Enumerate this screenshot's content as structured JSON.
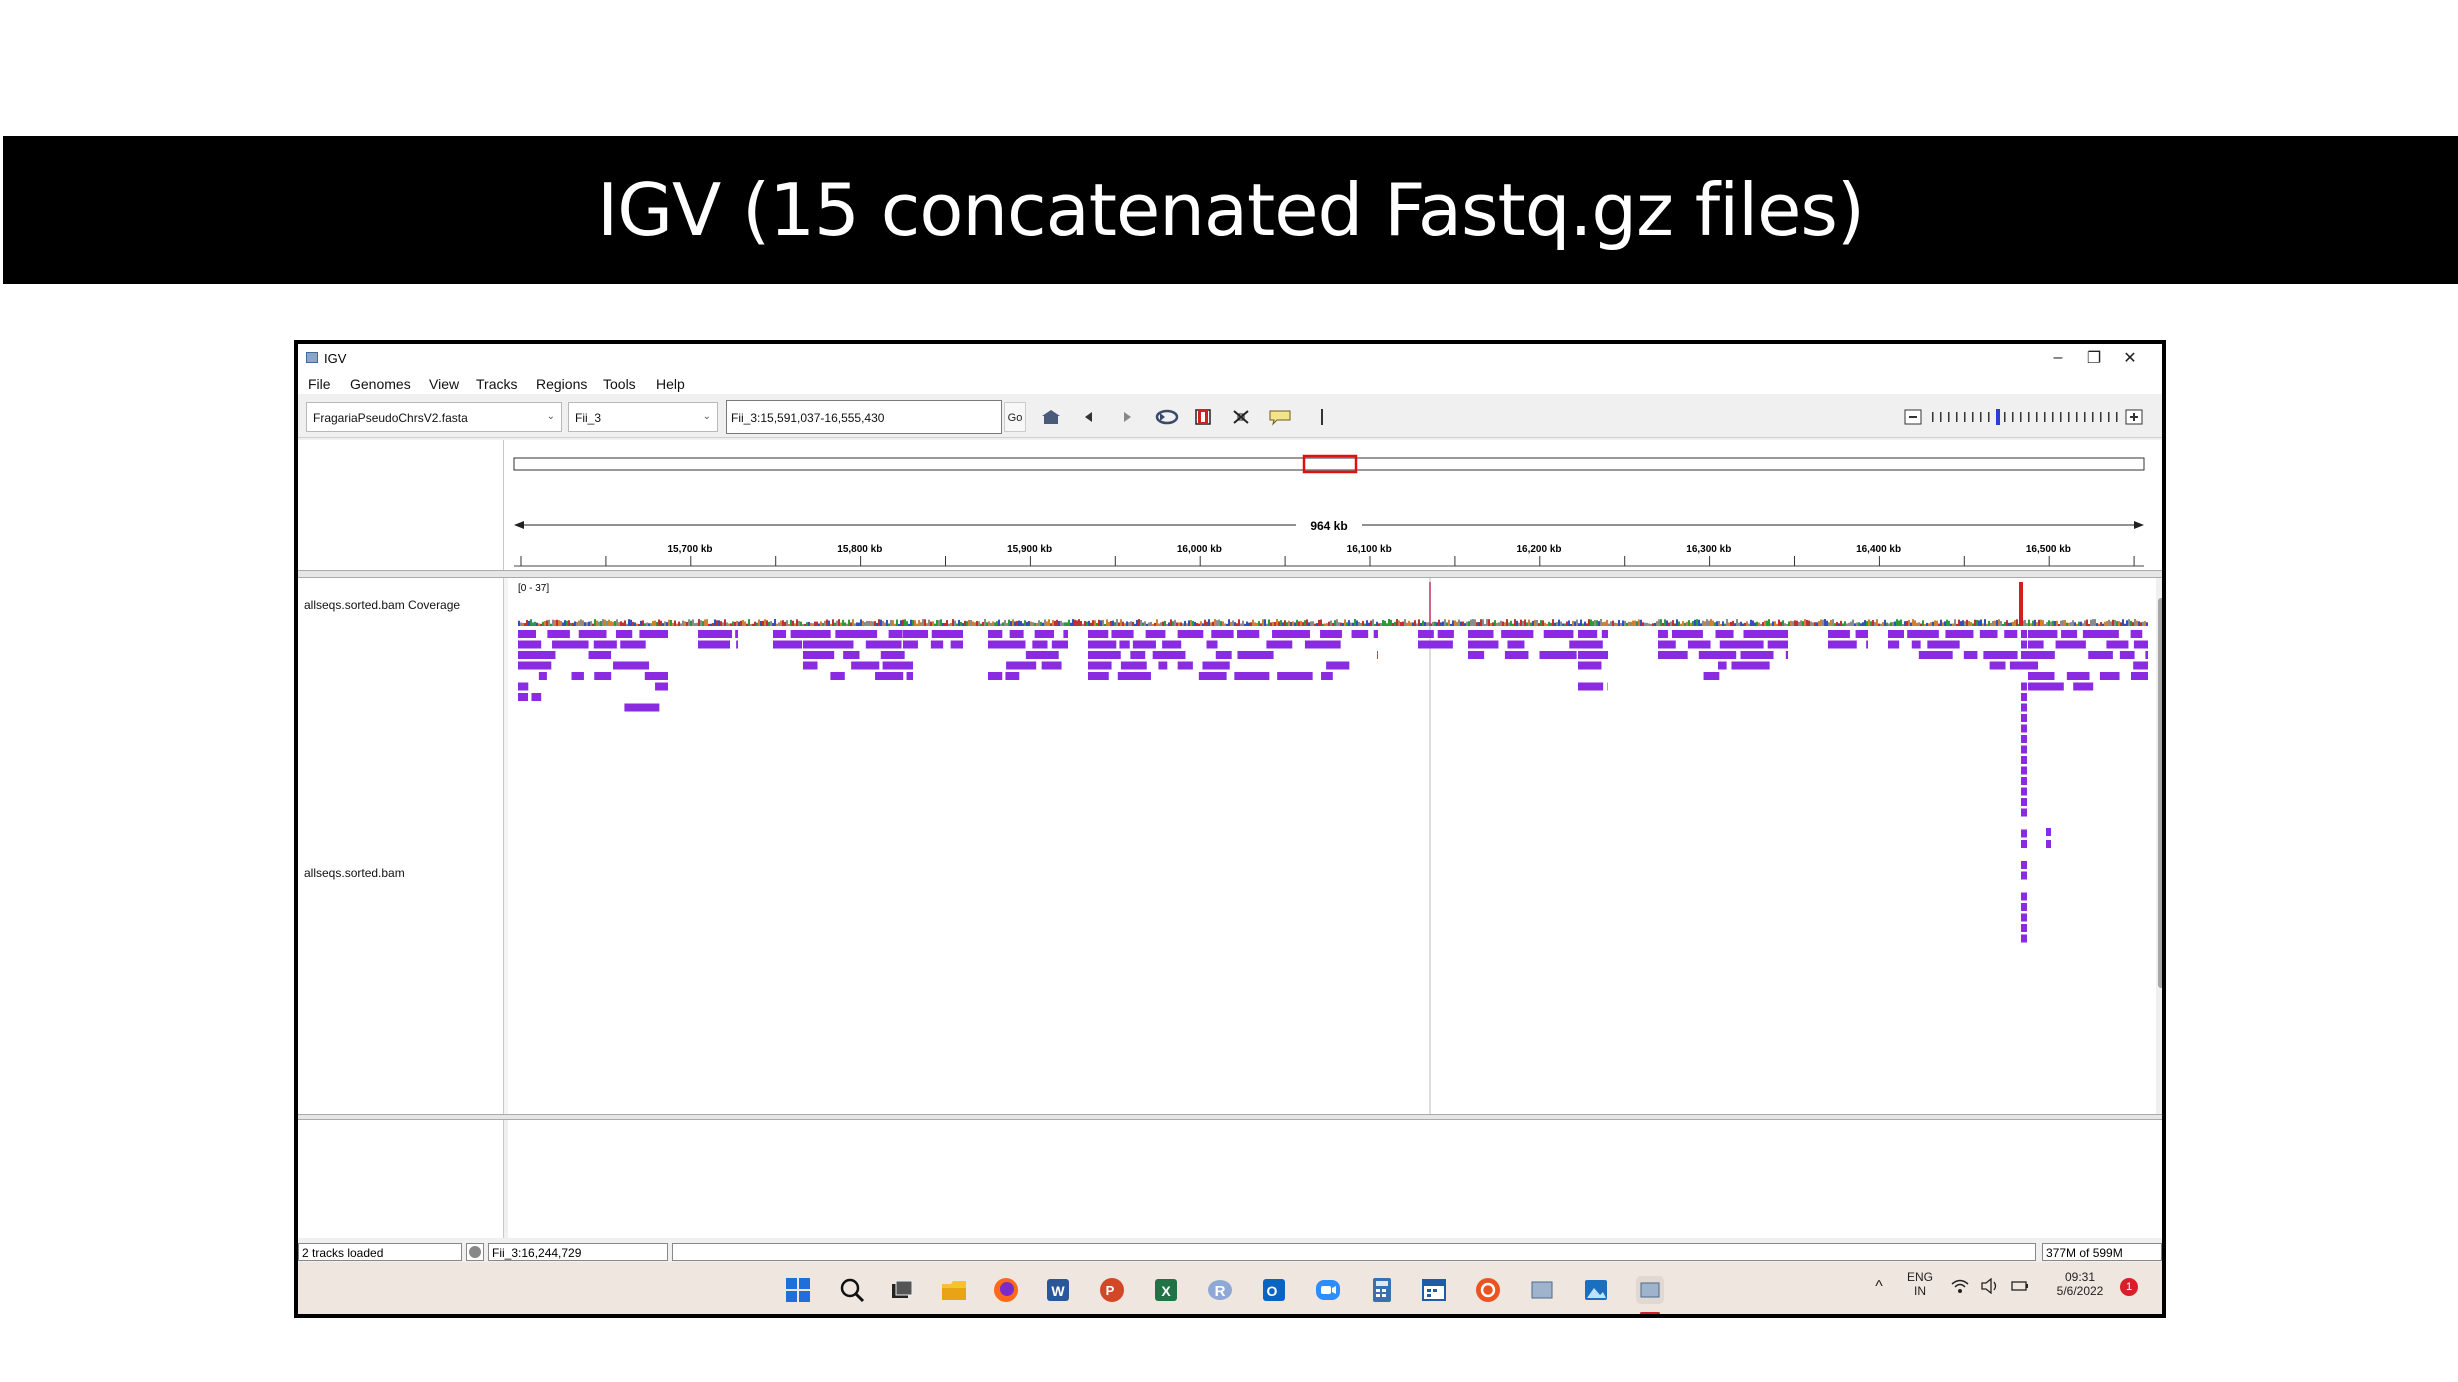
{
  "slide": {
    "title": "IGV (15 concatenated Fastq.gz files)"
  },
  "window": {
    "title": "IGV",
    "controls": {
      "minimize": "–",
      "restore": "❐",
      "close": "✕"
    }
  },
  "menu": [
    "File",
    "Genomes",
    "View",
    "Tracks",
    "Regions",
    "Tools",
    "Help"
  ],
  "toolbar": {
    "genome": "FragariaPseudoChrsV2.fasta",
    "chromosome": "Fii_3",
    "locus": "Fii_3:15,591,037-16,555,430",
    "go_label": "Go",
    "icons": [
      "home-icon",
      "back-icon",
      "forward-icon",
      "refresh-icon",
      "roi-icon",
      "resize-icon",
      "popup-text-icon"
    ]
  },
  "ruler": {
    "span_label": "964 kb",
    "ticks": [
      "15,700 kb",
      "15,800 kb",
      "15,900 kb",
      "16,000 kb",
      "16,100 kb",
      "16,200 kb",
      "16,300 kb",
      "16,400 kb",
      "16,500 kb"
    ]
  },
  "tracks": {
    "coverage_name": "allseqs.sorted.bam Coverage",
    "coverage_range": "[0 - 37]",
    "alignment_name": "allseqs.sorted.bam"
  },
  "status": {
    "tracks_loaded": "2 tracks loaded",
    "position": "Fii_3:16,244,729",
    "memory": "377M of 599M"
  },
  "taskbar": {
    "lang_top": "ENG",
    "lang_bottom": "IN",
    "time": "09:31",
    "date": "5/6/2022",
    "notifications": "1"
  },
  "colors": {
    "read_color": "#8a2be2",
    "roi_box": "#ff0000",
    "title_bg": "#000000"
  }
}
